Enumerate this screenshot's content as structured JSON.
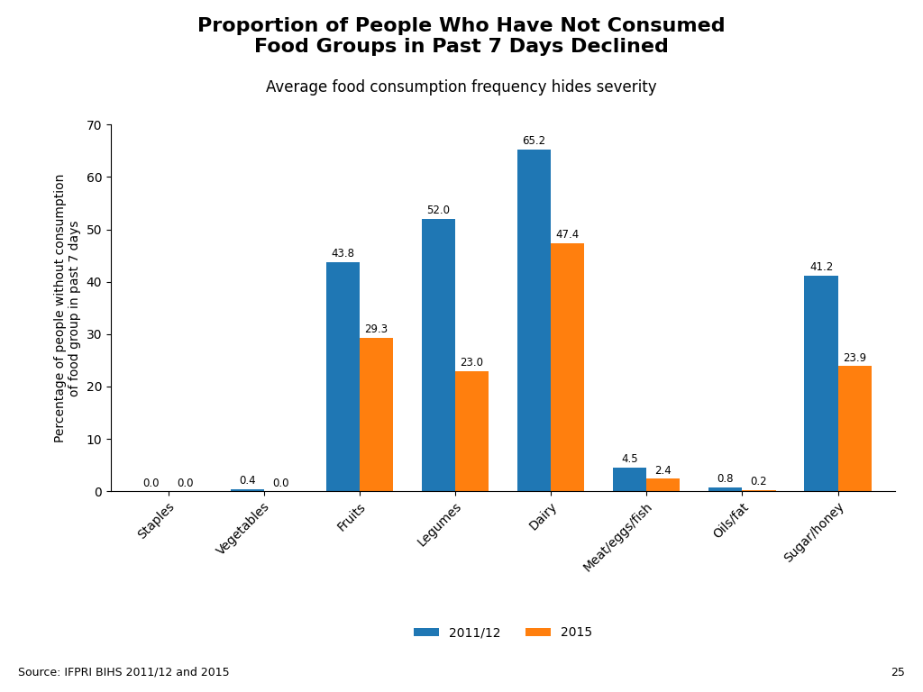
{
  "chart_data": {
    "type": "bar",
    "title": "Proportion of People Who Have Not Consumed\nFood Groups in Past 7 Days Declined",
    "subtitle": "Average food consumption frequency hides severity",
    "categories": [
      "Staples",
      "Vegetables",
      "Fruits",
      "Legumes",
      "Dairy",
      "Meat/eggs/fish",
      "Oils/fat",
      "Sugar/honey"
    ],
    "series": [
      {
        "name": "2011/12",
        "values": [
          0.0,
          0.4,
          43.8,
          52.0,
          65.2,
          4.5,
          0.8,
          41.2
        ]
      },
      {
        "name": "2015",
        "values": [
          0.0,
          0.0,
          29.3,
          23.0,
          47.4,
          2.4,
          0.2,
          23.9
        ]
      }
    ],
    "ylabel": "Percentage of people without consumption\nof food group in past 7 days",
    "ylim": [
      0,
      70
    ],
    "yticks": [
      0,
      10,
      20,
      30,
      40,
      50,
      60,
      70
    ],
    "grid": false,
    "legend": "lower center",
    "data_labels": true,
    "annotations": [
      "Source: IFPRI BIHS 2011/12 and 2015",
      "25"
    ]
  }
}
